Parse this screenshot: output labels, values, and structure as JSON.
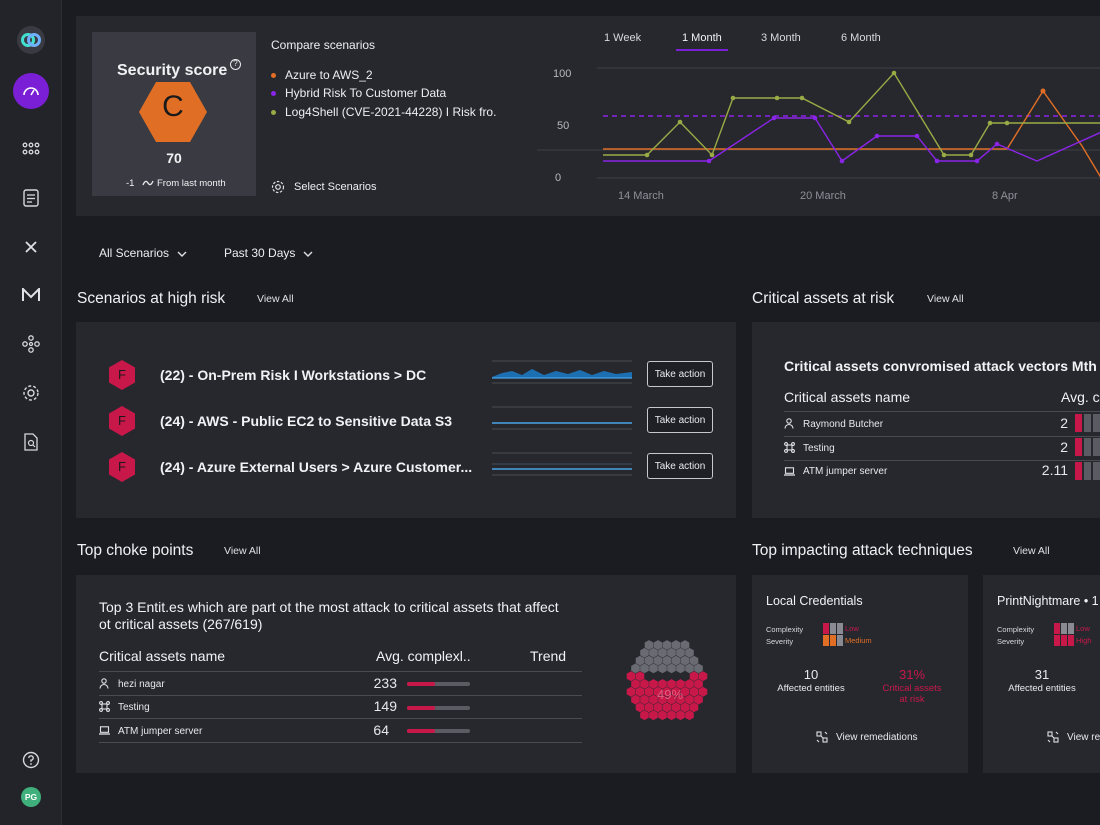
{
  "colors": {
    "accent": "#7a1fd6",
    "orange": "#e06e25",
    "purple": "#8a24e6",
    "green": "#9aaa45",
    "red": "#c8184a"
  },
  "sidebar": {
    "avatar_initials": "PG",
    "icons": [
      "logo-icon",
      "dashboard-icon",
      "grid-icon",
      "document-icon",
      "close-icon",
      "mail-icon",
      "network-icon",
      "gear-icon",
      "report-icon",
      "help-icon"
    ]
  },
  "score_card": {
    "title": "Security score",
    "grade": "C",
    "value": "70",
    "delta": "-1",
    "delta_label": "From last month"
  },
  "compare": {
    "title": "Compare scenarios",
    "items": [
      {
        "label": "Azure to AWS_2",
        "color": "#e06e25"
      },
      {
        "label": "Hybrid Risk To Customer Data",
        "color": "#8a24e6"
      },
      {
        "label": "Log4Shell (CVE-2021-44228) I Risk fro.",
        "color": "#9aaa45"
      }
    ],
    "select_label": "Select Scenarios"
  },
  "timeline": {
    "tabs": [
      "1 Week",
      "1 Month",
      "3 Month",
      "6 Month"
    ],
    "active_tab": "1 Month",
    "y_ticks": [
      "100",
      "50",
      "0"
    ],
    "x_ticks": [
      "14 March",
      "20 March",
      "8 Apr"
    ]
  },
  "filters": {
    "scenarios": "All Scenarios",
    "period": "Past 30 Days"
  },
  "high_risk": {
    "title": "Scenarios at high risk",
    "view_all": "View All",
    "rows": [
      {
        "grade": "F",
        "name": "(22) - On-Prem Risk I Workstations > DC",
        "action": "Take action"
      },
      {
        "grade": "F",
        "name": "(24) - AWS - Public EC2 to Sensitive Data S3",
        "action": "Take action"
      },
      {
        "grade": "F",
        "name": "(24) - Azure External Users > Azure Customer...",
        "action": "Take action"
      }
    ]
  },
  "critical_assets": {
    "title": "Critical assets at risk",
    "view_all": "View All",
    "subtitle": "Critical assets convromised attack vectors Mth t",
    "col_name": "Critical assets name",
    "col_avg": "Avg. c",
    "rows": [
      {
        "icon": "user-icon",
        "name": "Raymond Butcher",
        "value": "2"
      },
      {
        "icon": "network-node-icon",
        "name": "Testing",
        "value": "2"
      },
      {
        "icon": "laptop-icon",
        "name": "ATM jumper server",
        "value": "2.11"
      }
    ]
  },
  "choke": {
    "title": "Top choke points",
    "view_all": "View All",
    "heading_line1": "Top 3 Entit.es which are part ot the most attack to critical assets that affect",
    "heading_line2": "ot critical assets (267/619)",
    "col_name": "Critical assets name",
    "col_avg": "Avg. complexl..",
    "col_trend": "Trend",
    "rows": [
      {
        "icon": "user-icon",
        "name": "hezi nagar",
        "value": "233",
        "fill": 0.45
      },
      {
        "icon": "network-node-icon",
        "name": "Testing",
        "value": "149",
        "fill": 0.45
      },
      {
        "icon": "laptop-icon",
        "name": "ATM jumper server",
        "value": "64",
        "fill": 0.45
      }
    ],
    "honeycomb_percent": "49%"
  },
  "techniques": {
    "title": "Top impacting attack techniques",
    "view_all": "View All",
    "cards": [
      {
        "name": "Local Credentials",
        "complexity_label": "Complexity",
        "complexity_value": "Low",
        "severity_label": "Severity",
        "severity_value": "Medium",
        "affected_value": "10",
        "affected_label": "Affected entities",
        "critical_value": "31%",
        "critical_label_1": "Critical assets",
        "critical_label_2": "at risk",
        "remediation_label": "View remediations"
      },
      {
        "name": "PrintNightmare • 1",
        "complexity_label": "Complexity",
        "complexity_value": "Low",
        "severity_label": "Severity",
        "severity_value": "High",
        "affected_value": "31",
        "affected_label": "Affected entities",
        "remediation_label": "View re"
      }
    ]
  }
}
